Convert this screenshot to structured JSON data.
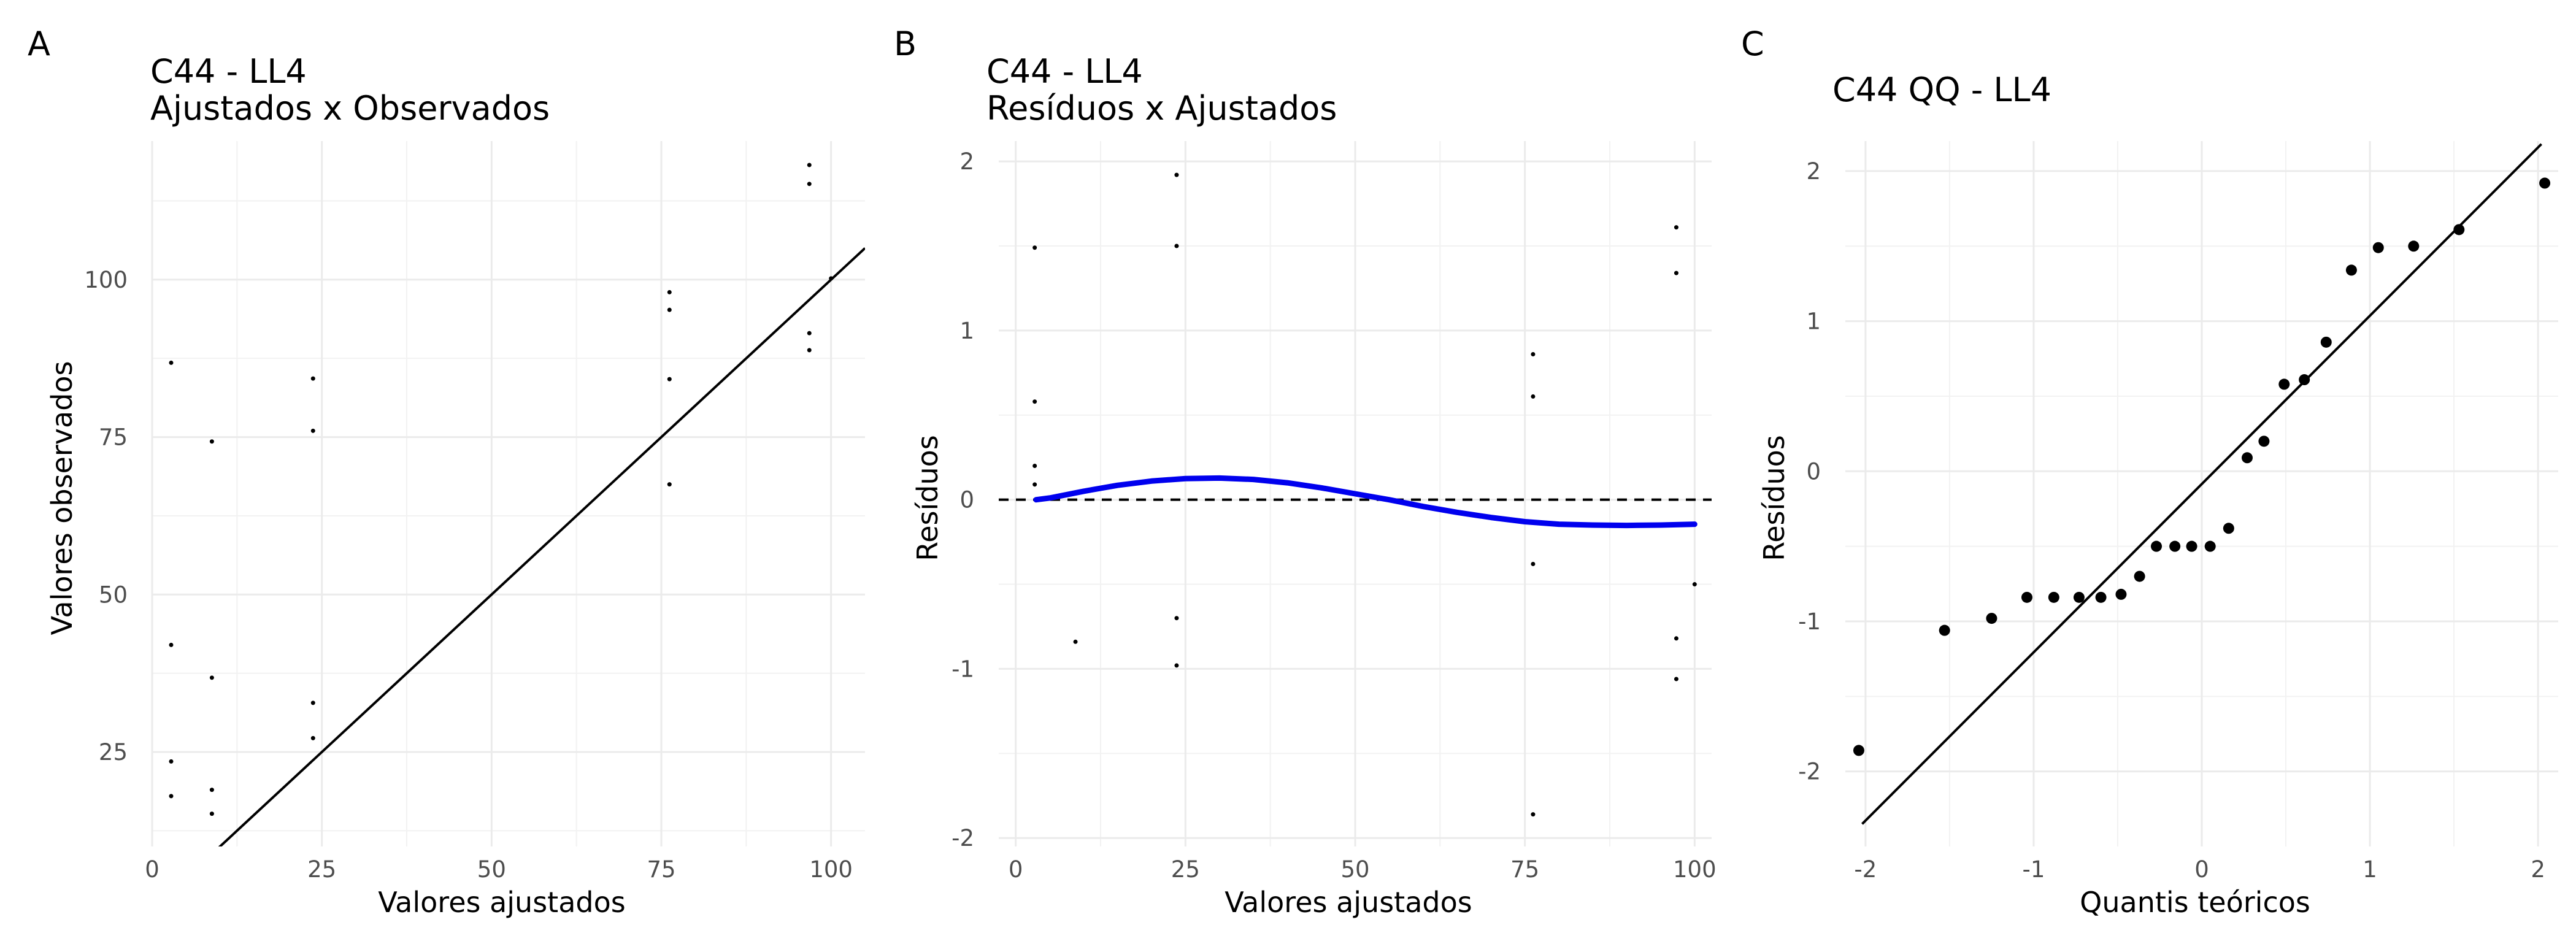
{
  "chart_data": [
    {
      "panel": "A",
      "type": "scatter",
      "title": [
        "C44 - LL4",
        "Ajustados x Observados"
      ],
      "xlabel": "Valores ajustados",
      "ylabel": "Valores observados",
      "xlim": [
        0,
        105
      ],
      "ylim": [
        10,
        122
      ],
      "xticks": [
        0,
        25,
        50,
        75,
        100
      ],
      "yticks": [
        25,
        50,
        75,
        100
      ],
      "grid": true,
      "reference_line": {
        "type": "identity",
        "from": [
          9.5,
          9.5
        ],
        "to": [
          105,
          105
        ],
        "color": "#000000"
      },
      "point_radius": 3.5,
      "points": [
        [
          2.8,
          86.8
        ],
        [
          2.8,
          42
        ],
        [
          2.8,
          23.5
        ],
        [
          2.8,
          18
        ],
        [
          8.8,
          74.3
        ],
        [
          8.8,
          36.8
        ],
        [
          8.8,
          19
        ],
        [
          8.8,
          15.2
        ],
        [
          23.7,
          84.3
        ],
        [
          23.7,
          76
        ],
        [
          23.7,
          32.8
        ],
        [
          23.7,
          27.2
        ],
        [
          76.2,
          98
        ],
        [
          76.2,
          95.2
        ],
        [
          76.2,
          84.2
        ],
        [
          76.2,
          67.5
        ],
        [
          96.8,
          118.2
        ],
        [
          96.8,
          115.2
        ],
        [
          96.8,
          91.5
        ],
        [
          96.8,
          88.8
        ],
        [
          100,
          100.2
        ]
      ]
    },
    {
      "panel": "B",
      "type": "scatter",
      "title": [
        "C44 - LL4",
        "Resíduos x Ajustados"
      ],
      "xlabel": "Valores ajustados",
      "ylabel": "Resíduos",
      "xlim": [
        -2.5,
        102.5
      ],
      "ylim": [
        -2.05,
        2.12
      ],
      "xticks": [
        0,
        25,
        50,
        75,
        100
      ],
      "yticks": [
        -2,
        -1,
        0,
        1,
        2
      ],
      "grid": true,
      "hline": {
        "y": 0,
        "style": "dashed",
        "color": "#000000"
      },
      "point_radius": 3.5,
      "points": [
        [
          2.8,
          1.49
        ],
        [
          2.8,
          0.58
        ],
        [
          2.8,
          0.2
        ],
        [
          2.8,
          0.09
        ],
        [
          8.8,
          -0.84
        ],
        [
          23.7,
          1.92
        ],
        [
          23.7,
          1.5
        ],
        [
          23.7,
          -0.7
        ],
        [
          23.7,
          -0.98
        ],
        [
          76.2,
          0.86
        ],
        [
          76.2,
          0.61
        ],
        [
          76.2,
          -0.38
        ],
        [
          76.2,
          -1.86
        ],
        [
          97.3,
          1.61
        ],
        [
          97.3,
          1.34
        ],
        [
          97.3,
          -0.82
        ],
        [
          97.3,
          -1.06
        ],
        [
          100,
          -0.5
        ]
      ],
      "smooth": {
        "color": "#0000ee",
        "x": [
          3,
          5,
          10,
          15,
          20,
          25,
          30,
          35,
          40,
          45,
          50,
          55,
          60,
          65,
          70,
          75,
          80,
          85,
          90,
          95,
          100
        ],
        "y": [
          0.0,
          0.01,
          0.05,
          0.085,
          0.11,
          0.125,
          0.128,
          0.12,
          0.1,
          0.07,
          0.035,
          0.0,
          -0.04,
          -0.075,
          -0.105,
          -0.13,
          -0.145,
          -0.15,
          -0.152,
          -0.15,
          -0.145
        ]
      }
    },
    {
      "panel": "C",
      "type": "scatter",
      "title": [
        "C44 QQ - LL4"
      ],
      "xlabel": "Quantis teóricos",
      "ylabel": "Resíduos",
      "xlim": [
        -2.12,
        2.12
      ],
      "ylim": [
        -2.5,
        2.2
      ],
      "xticks": [
        -2,
        -1,
        0,
        1,
        2
      ],
      "yticks": [
        -2,
        -1,
        0,
        1,
        2
      ],
      "grid": true,
      "reference_line": {
        "type": "qq",
        "from": [
          -2.02,
          -2.35
        ],
        "to": [
          2.02,
          2.18
        ],
        "color": "#000000"
      },
      "point_radius": 9,
      "points": [
        [
          -2.04,
          -1.86
        ],
        [
          -1.53,
          -1.06
        ],
        [
          -1.25,
          -0.98
        ],
        [
          -1.04,
          -0.84
        ],
        [
          -0.88,
          -0.84
        ],
        [
          -0.73,
          -0.84
        ],
        [
          -0.6,
          -0.84
        ],
        [
          -0.48,
          -0.82
        ],
        [
          -0.37,
          -0.7
        ],
        [
          -0.27,
          -0.5
        ],
        [
          -0.16,
          -0.5
        ],
        [
          -0.06,
          -0.5
        ],
        [
          0.05,
          -0.5
        ],
        [
          0.16,
          -0.38
        ],
        [
          0.27,
          0.09
        ],
        [
          0.37,
          0.2
        ],
        [
          0.49,
          0.58
        ],
        [
          0.61,
          0.61
        ],
        [
          0.74,
          0.86
        ],
        [
          0.89,
          1.34
        ],
        [
          1.05,
          1.49
        ],
        [
          1.26,
          1.5
        ],
        [
          1.53,
          1.61
        ],
        [
          2.04,
          1.92
        ]
      ]
    }
  ]
}
